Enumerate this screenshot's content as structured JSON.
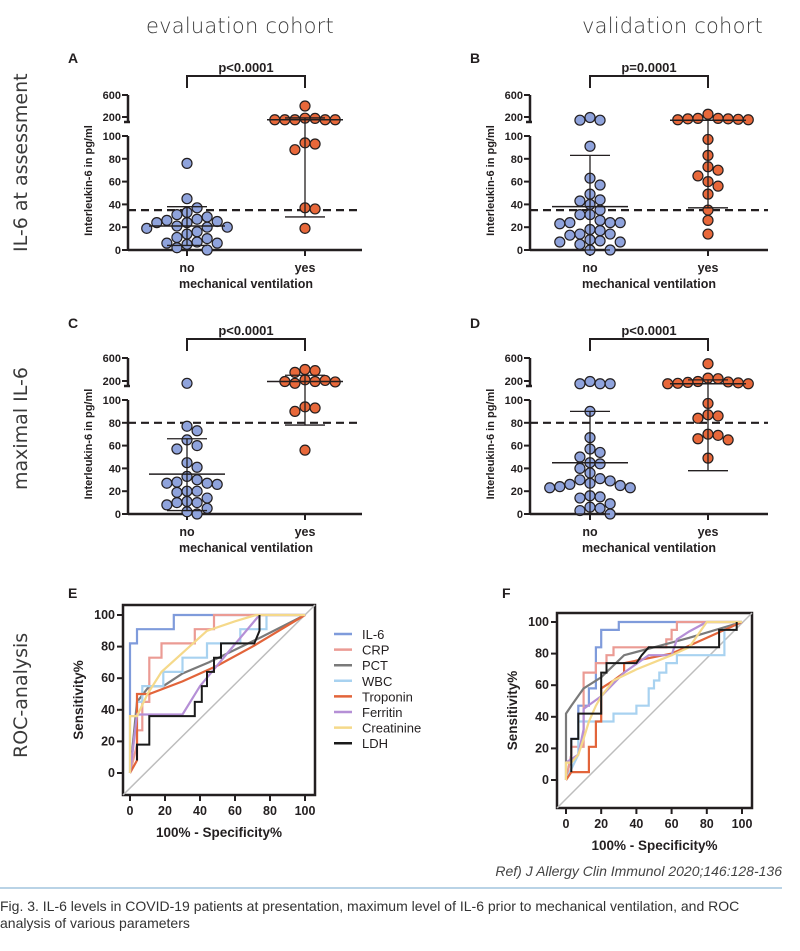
{
  "columns": [
    "evaluation cohort",
    "validation cohort"
  ],
  "rows": [
    "IL-6 at assessment",
    "maximal IL-6",
    "ROC-analysis"
  ],
  "reference": "Ref) J Allergy Clin Immunol 2020;146:128-136",
  "caption": "Fig. 3. IL-6 levels in COVID-19 patients at presentation, maximum level of IL-6 prior to mechanical ventilation, and ROC analysis of various parameters",
  "colors": {
    "no": "#8fa3dc",
    "yes": "#e8683a",
    "axis": "#231f20"
  },
  "chart_data": [
    {
      "panel": "A",
      "type": "scatter",
      "ylabel": "Interleukin-6 in pg/ml",
      "xlabel": "mechanical ventilation",
      "categories": [
        "no",
        "yes"
      ],
      "yticks": [
        0,
        20,
        40,
        60,
        80,
        100,
        200,
        600
      ],
      "ylim_lower": [
        0,
        100
      ],
      "ylim_upper": [
        100,
        600
      ],
      "pvalue": "p<0.0001",
      "cutoff": 35,
      "groups": [
        {
          "name": "no",
          "median": 21,
          "iqr": [
            4,
            38
          ],
          "values": [
            76,
            45,
            37,
            33,
            31,
            29,
            27,
            26,
            25,
            24,
            24,
            21,
            20,
            20,
            19,
            16,
            14,
            11,
            10,
            7,
            6,
            6,
            5,
            2,
            0
          ]
        },
        {
          "name": "yes",
          "median": 150,
          "iqr": [
            29,
            190
          ],
          "values": [
            400,
            185,
            180,
            150,
            150,
            150,
            150,
            150,
            94,
            93,
            88,
            37,
            36,
            19
          ]
        }
      ]
    },
    {
      "panel": "B",
      "type": "scatter",
      "ylabel": "Interleukin-6 in pg/ml",
      "xlabel": "mechanical ventilation",
      "categories": [
        "no",
        "yes"
      ],
      "yticks": [
        0,
        20,
        40,
        60,
        80,
        100,
        200,
        600
      ],
      "pvalue": "p=0.0001",
      "cutoff": 35,
      "groups": [
        {
          "name": "no",
          "median": 38,
          "iqr": [
            0,
            83
          ],
          "values": [
            200,
            140,
            140,
            91,
            63,
            57,
            49,
            44,
            43,
            40,
            35,
            31,
            31,
            26,
            24,
            24,
            24,
            23,
            18,
            17,
            14,
            14,
            13,
            9,
            8,
            7,
            7,
            5,
            0,
            0
          ]
        },
        {
          "name": "yes",
          "median": 140,
          "iqr": [
            37,
            140
          ],
          "values": [
            250,
            180,
            180,
            170,
            170,
            160,
            150,
            150,
            97,
            83,
            73,
            70,
            65,
            60,
            56,
            49,
            35,
            26,
            14
          ]
        }
      ]
    },
    {
      "panel": "C",
      "type": "scatter",
      "ylabel": "Interleukin-6 in pg/ml",
      "xlabel": "mechanical ventilation",
      "categories": [
        "no",
        "yes"
      ],
      "yticks": [
        0,
        20,
        40,
        60,
        80,
        100,
        200,
        600
      ],
      "pvalue": "p<0.0001",
      "cutoff": 80,
      "groups": [
        {
          "name": "no",
          "median": 35,
          "iqr": [
            3,
            66
          ],
          "values": [
            160,
            77,
            73,
            65,
            60,
            57,
            45,
            41,
            33,
            30,
            28,
            27,
            27,
            26,
            20,
            20,
            19,
            14,
            11,
            10,
            10,
            8,
            5,
            2,
            0
          ]
        },
        {
          "name": "yes",
          "median": 200,
          "iqr": [
            78,
            300
          ],
          "values": [
            400,
            380,
            350,
            220,
            210,
            200,
            200,
            190,
            160,
            94,
            93,
            90,
            56
          ]
        }
      ]
    },
    {
      "panel": "D",
      "type": "scatter",
      "ylabel": "Interleukin-6 in pg/ml",
      "xlabel": "mechanical ventilation",
      "categories": [
        "no",
        "yes"
      ],
      "yticks": [
        0,
        20,
        40,
        60,
        80,
        100,
        200,
        600
      ],
      "pvalue": "p<0.0001",
      "cutoff": 80,
      "groups": [
        {
          "name": "no",
          "median": 45,
          "iqr": [
            0,
            90
          ],
          "values": [
            200,
            150,
            150,
            150,
            90,
            67,
            57,
            54,
            50,
            45,
            44,
            40,
            36,
            31,
            30,
            29,
            27,
            26,
            25,
            24,
            23,
            23,
            16,
            15,
            14,
            9,
            6,
            5,
            3,
            0
          ]
        },
        {
          "name": "yes",
          "median": 150,
          "iqr": [
            38,
            220
          ],
          "values": [
            500,
            250,
            240,
            200,
            190,
            180,
            170,
            160,
            150,
            150,
            97,
            87,
            86,
            84,
            70,
            69,
            66,
            65,
            49
          ]
        }
      ]
    },
    {
      "panel": "E",
      "type": "line",
      "xlabel": "100% - Specificity%",
      "ylabel": "Sensitivity%",
      "xlim": [
        0,
        100
      ],
      "ylim": [
        0,
        100
      ],
      "xticks": [
        0,
        20,
        40,
        60,
        80,
        100
      ],
      "yticks": [
        0,
        20,
        40,
        60,
        80,
        100
      ],
      "legend_position": "right",
      "series": [
        {
          "name": "IL-6",
          "color": "#7f9bdb",
          "x": [
            0,
            0,
            0,
            4,
            4,
            25,
            25,
            100
          ],
          "y": [
            0,
            36,
            82,
            82,
            91,
            91,
            100,
            100
          ]
        },
        {
          "name": "CRP",
          "color": "#eb9b94",
          "x": [
            0,
            4,
            4,
            7,
            7,
            11,
            11,
            18,
            18,
            37,
            37,
            48,
            48,
            100
          ],
          "y": [
            0,
            18,
            27,
            27,
            45,
            45,
            73,
            73,
            82,
            82,
            91,
            91,
            100,
            100
          ]
        },
        {
          "name": "PCT",
          "color": "#7a7a7a",
          "x": [
            0,
            4,
            11,
            19,
            30,
            45,
            60,
            75,
            100
          ],
          "y": [
            0,
            45,
            55,
            55,
            63,
            70,
            78,
            86,
            100
          ]
        },
        {
          "name": "WBC",
          "color": "#a8d2f0",
          "x": [
            0,
            4,
            4,
            7,
            7,
            19,
            19,
            30,
            30,
            44,
            44,
            48,
            48,
            63,
            63,
            78,
            78,
            100
          ],
          "y": [
            0,
            36,
            45,
            45,
            55,
            55,
            64,
            64,
            73,
            73,
            82,
            82,
            82,
            82,
            91,
            91,
            100,
            100
          ]
        },
        {
          "name": "Troponin",
          "color": "#e2643a",
          "x": [
            0,
            4,
            4,
            11,
            30,
            50,
            70,
            100
          ],
          "y": [
            0,
            8,
            50,
            50,
            58,
            68,
            80,
            100
          ]
        },
        {
          "name": "Ferritin",
          "color": "#b58fd6",
          "x": [
            0,
            4,
            30,
            40,
            55,
            74,
            100
          ],
          "y": [
            0,
            37,
            37,
            55,
            75,
            100,
            100
          ]
        },
        {
          "name": "Creatinine",
          "color": "#f5d98a",
          "x": [
            0,
            0,
            4,
            10,
            18,
            30,
            44,
            60,
            72,
            100
          ],
          "y": [
            0,
            36,
            36,
            50,
            64,
            76,
            90,
            96,
            100,
            100
          ]
        },
        {
          "name": "LDH",
          "color": "#1a1a1a",
          "x": [
            4,
            4,
            7,
            7,
            11,
            11,
            37,
            37,
            41,
            41,
            44,
            44,
            48,
            48,
            52,
            52,
            71,
            74,
            74
          ],
          "y": [
            8,
            18,
            18,
            18,
            18,
            36,
            36,
            45,
            45,
            55,
            55,
            64,
            64,
            73,
            73,
            82,
            82,
            90,
            100
          ]
        }
      ]
    },
    {
      "panel": "F",
      "type": "line",
      "xlabel": "100% - Specificity%",
      "ylabel": "Sensitivity%",
      "xlim": [
        0,
        100
      ],
      "ylim": [
        0,
        100
      ],
      "xticks": [
        0,
        20,
        40,
        60,
        80,
        100
      ],
      "yticks": [
        0,
        20,
        40,
        60,
        80,
        100
      ],
      "series": [
        {
          "name": "IL-6",
          "color": "#7f9bdb",
          "x": [
            0,
            3,
            3,
            7,
            7,
            13,
            13,
            17,
            17,
            20,
            20,
            30,
            30,
            100
          ],
          "y": [
            0,
            16,
            26,
            26,
            47,
            47,
            58,
            58,
            84,
            84,
            95,
            95,
            100,
            100
          ]
        },
        {
          "name": "CRP",
          "color": "#eb9b94",
          "x": [
            0,
            3,
            3,
            10,
            10,
            17,
            17,
            23,
            23,
            27,
            27,
            57,
            57,
            60,
            60,
            63,
            63,
            100
          ],
          "y": [
            0,
            16,
            21,
            21,
            68,
            68,
            74,
            74,
            79,
            79,
            84,
            84,
            89,
            89,
            95,
            95,
            100,
            100
          ]
        },
        {
          "name": "PCT",
          "color": "#7a7a7a",
          "x": [
            0,
            0,
            3,
            10,
            20,
            33,
            50,
            70,
            100
          ],
          "y": [
            0,
            42,
            47,
            58,
            65,
            79,
            84,
            90,
            100
          ]
        },
        {
          "name": "WBC",
          "color": "#a8d2f0",
          "x": [
            0,
            7,
            7,
            27,
            27,
            40,
            40,
            47,
            47,
            50,
            50,
            53,
            53,
            57,
            57,
            63,
            63,
            70,
            70,
            90,
            90,
            100
          ],
          "y": [
            0,
            16,
            37,
            37,
            42,
            42,
            47,
            47,
            58,
            58,
            63,
            63,
            68,
            68,
            74,
            74,
            79,
            79,
            79,
            79,
            95,
            100
          ]
        },
        {
          "name": "Troponin",
          "color": "#e2643a",
          "x": [
            0,
            3,
            13,
            13,
            17,
            17,
            20,
            20,
            27,
            33,
            33,
            60,
            100
          ],
          "y": [
            0,
            5,
            5,
            21,
            21,
            37,
            37,
            58,
            63,
            68,
            74,
            80,
            100
          ]
        },
        {
          "name": "Ferritin",
          "color": "#b58fd6",
          "x": [
            0,
            7,
            10,
            10,
            20,
            33,
            47,
            60,
            63,
            70,
            80,
            100
          ],
          "y": [
            11,
            16,
            32,
            45,
            53,
            68,
            79,
            79,
            89,
            94,
            100,
            100
          ]
        },
        {
          "name": "Creatinine",
          "color": "#f5d98a",
          "x": [
            0,
            0,
            3,
            7,
            7,
            10,
            13,
            17,
            20,
            27,
            40,
            60,
            70,
            80,
            100
          ],
          "y": [
            0,
            11,
            11,
            16,
            16,
            26,
            37,
            47,
            53,
            63,
            70,
            79,
            84,
            100,
            100
          ]
        },
        {
          "name": "LDH",
          "color": "#1a1a1a",
          "x": [
            3,
            3,
            7,
            7,
            13,
            13,
            20,
            20,
            23,
            23,
            27,
            27,
            40,
            43,
            43,
            47,
            47,
            87,
            87,
            97,
            97
          ],
          "y": [
            5,
            26,
            26,
            42,
            42,
            42,
            42,
            68,
            68,
            74,
            74,
            74,
            74,
            79,
            79,
            84,
            84,
            84,
            95,
            95,
            100
          ]
        }
      ]
    }
  ]
}
